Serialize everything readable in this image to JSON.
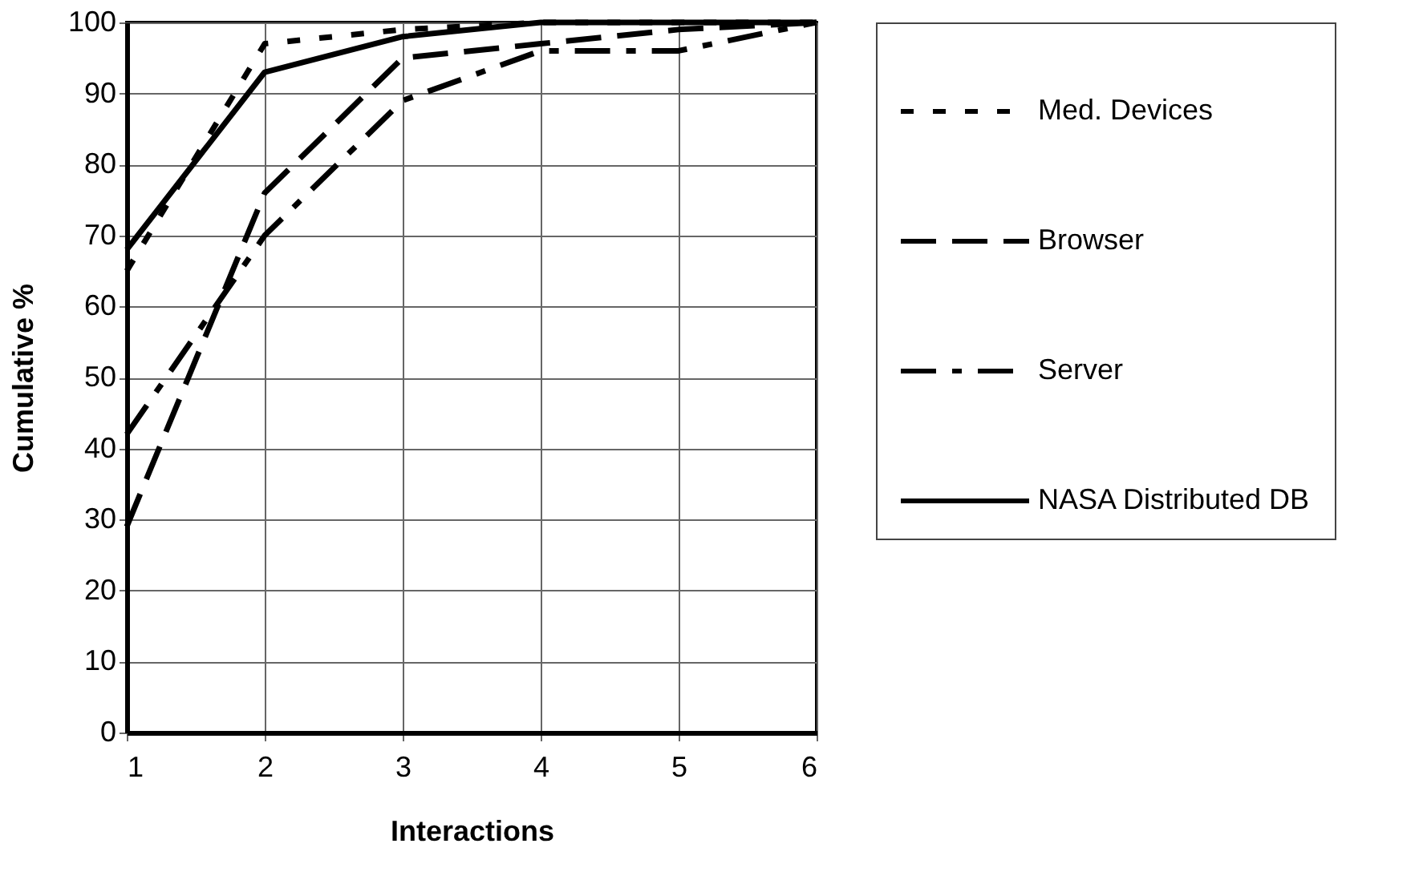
{
  "chart_data": {
    "type": "line",
    "xlabel": "Interactions",
    "ylabel": "Cumulative %",
    "x": [
      1,
      2,
      3,
      4,
      5,
      6
    ],
    "series": [
      {
        "name": "Med. Devices",
        "color": "#000000",
        "line_style": "dotted",
        "values": [
          65,
          97,
          99,
          100,
          100,
          100
        ]
      },
      {
        "name": "Browser",
        "color": "#000000",
        "line_style": "dashed",
        "values": [
          29,
          76,
          95,
          97,
          99,
          100
        ]
      },
      {
        "name": "Server",
        "color": "#000000",
        "line_style": "dashdot",
        "values": [
          42,
          70,
          89,
          96,
          96,
          100
        ]
      },
      {
        "name": "NASA Distributed DB",
        "color": "#000000",
        "line_style": "solid",
        "values": [
          68,
          93,
          98,
          100,
          100,
          100
        ]
      }
    ],
    "xlim": [
      1,
      6
    ],
    "xticks": [
      1,
      2,
      3,
      4,
      5,
      6
    ],
    "ylim": [
      0,
      100
    ],
    "yticks": [
      0,
      10,
      20,
      30,
      40,
      50,
      60,
      70,
      80,
      90,
      100
    ],
    "grid": true,
    "legend": "right",
    "marker": "none"
  }
}
